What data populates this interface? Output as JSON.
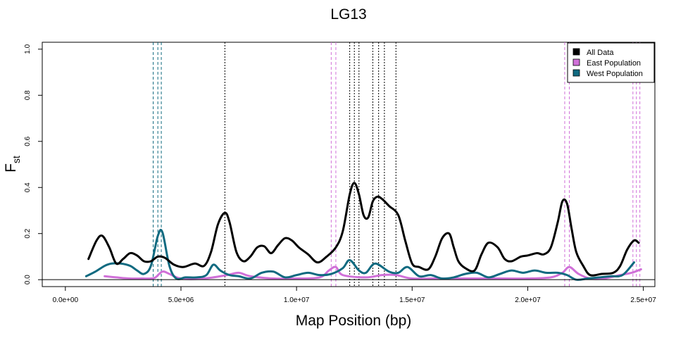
{
  "chart_data": {
    "type": "line",
    "title": "LG13",
    "xlabel": "Map Position (bp)",
    "ylabel_main": "F",
    "ylabel_sub": "st",
    "xlim": [
      -1000000,
      25500000
    ],
    "ylim": [
      -0.03,
      1.03
    ],
    "x_ticks": [
      0,
      5000000,
      10000000,
      15000000,
      20000000,
      25000000
    ],
    "x_tick_labels": [
      "0.0e+00",
      "5.0e+06",
      "1.0e+07",
      "1.5e+07",
      "2.0e+07",
      "2.5e+07"
    ],
    "y_ticks": [
      0,
      0.2,
      0.4,
      0.6,
      0.8,
      1.0
    ],
    "y_tick_labels": [
      "0.0",
      "0.2",
      "0.4",
      "0.6",
      "0.8",
      "1.0"
    ],
    "zero_line": 0,
    "legend_position": "top-right",
    "series": [
      {
        "name": "All Data",
        "color": "#000000",
        "x": [
          1000000,
          1350000,
          1600000,
          1900000,
          2200000,
          2500000,
          2800000,
          3100000,
          3400000,
          3700000,
          4000000,
          4300000,
          4700000,
          5100000,
          5600000,
          6000000,
          6300000,
          6600000,
          6900000,
          7100000,
          7400000,
          7700000,
          8000000,
          8300000,
          8600000,
          8900000,
          9200000,
          9500000,
          9800000,
          10100000,
          10500000,
          10900000,
          11300000,
          11700000,
          12000000,
          12300000,
          12500000,
          12700000,
          12900000,
          13100000,
          13300000,
          13500000,
          13700000,
          14000000,
          14400000,
          14700000,
          15000000,
          15300000,
          15700000,
          16000000,
          16300000,
          16600000,
          16800000,
          17000000,
          17300000,
          17700000,
          18000000,
          18300000,
          18700000,
          19000000,
          19300000,
          19700000,
          20000000,
          20400000,
          20700000,
          21000000,
          21300000,
          21500000,
          21700000,
          21900000,
          22100000,
          22400000,
          22700000,
          23200000,
          23700000,
          24000000,
          24300000,
          24600000,
          24800000
        ],
        "values": [
          0.09,
          0.17,
          0.19,
          0.14,
          0.07,
          0.09,
          0.115,
          0.105,
          0.08,
          0.08,
          0.1,
          0.095,
          0.065,
          0.055,
          0.07,
          0.06,
          0.12,
          0.24,
          0.29,
          0.25,
          0.12,
          0.08,
          0.1,
          0.14,
          0.145,
          0.115,
          0.15,
          0.18,
          0.17,
          0.14,
          0.11,
          0.075,
          0.1,
          0.14,
          0.21,
          0.37,
          0.42,
          0.37,
          0.28,
          0.27,
          0.34,
          0.36,
          0.35,
          0.32,
          0.28,
          0.17,
          0.07,
          0.055,
          0.045,
          0.1,
          0.18,
          0.2,
          0.14,
          0.08,
          0.05,
          0.04,
          0.11,
          0.16,
          0.14,
          0.09,
          0.08,
          0.1,
          0.105,
          0.115,
          0.11,
          0.14,
          0.25,
          0.34,
          0.33,
          0.22,
          0.12,
          0.06,
          0.02,
          0.025,
          0.03,
          0.06,
          0.13,
          0.17,
          0.16
        ]
      },
      {
        "name": "East Population",
        "color": "#d070d8",
        "x": [
          1700000,
          2200000,
          2800000,
          3300000,
          3700000,
          3900000,
          4200000,
          4500000,
          5000000,
          6000000,
          7000000,
          7500000,
          8000000,
          9000000,
          10000000,
          11000000,
          11400000,
          11700000,
          12000000,
          13000000,
          13700000,
          14300000,
          15000000,
          16000000,
          17000000,
          18000000,
          19000000,
          20000000,
          21000000,
          21500000,
          21800000,
          22200000,
          22700000,
          23300000,
          24000000,
          24500000,
          24900000
        ],
        "values": [
          0.015,
          0.01,
          0.005,
          0.005,
          0.005,
          0.01,
          0.035,
          0.025,
          0.005,
          0.005,
          0.02,
          0.03,
          0.015,
          0.005,
          0.005,
          0.01,
          0.04,
          0.055,
          0.02,
          0.01,
          0.02,
          0.02,
          0.005,
          0.005,
          0.005,
          0.005,
          0.005,
          0.005,
          0.01,
          0.03,
          0.055,
          0.025,
          0.005,
          0.005,
          0.02,
          0.03,
          0.045
        ]
      },
      {
        "name": "West Population",
        "color": "#106a80",
        "x": [
          900000,
          1300000,
          1700000,
          2000000,
          2400000,
          2800000,
          3100000,
          3400000,
          3700000,
          4000000,
          4200000,
          4500000,
          4800000,
          5200000,
          5700000,
          6100000,
          6400000,
          6700000,
          7100000,
          7500000,
          8000000,
          8500000,
          9000000,
          9500000,
          10000000,
          10500000,
          11000000,
          11500000,
          12000000,
          12300000,
          12700000,
          13000000,
          13400000,
          14000000,
          14400000,
          14800000,
          15300000,
          15800000,
          16300000,
          16800000,
          17300000,
          17800000,
          18300000,
          18800000,
          19300000,
          19800000,
          20300000,
          20800000,
          21300000,
          21700000,
          22100000,
          22600000,
          23100000,
          23600000,
          24100000,
          24600000
        ],
        "values": [
          0.015,
          0.035,
          0.06,
          0.07,
          0.07,
          0.06,
          0.04,
          0.025,
          0.06,
          0.19,
          0.205,
          0.06,
          0.005,
          0.01,
          0.01,
          0.02,
          0.065,
          0.04,
          0.02,
          0.015,
          0.005,
          0.03,
          0.035,
          0.01,
          0.02,
          0.03,
          0.02,
          0.025,
          0.05,
          0.085,
          0.04,
          0.03,
          0.07,
          0.035,
          0.03,
          0.055,
          0.015,
          0.02,
          0.005,
          0.01,
          0.025,
          0.03,
          0.01,
          0.025,
          0.04,
          0.03,
          0.04,
          0.03,
          0.03,
          0.02,
          0.0,
          0.005,
          0.01,
          0.015,
          0.02,
          0.075
        ]
      }
    ],
    "vlines": [
      {
        "x": 3800000,
        "color": "#106a80",
        "style": "dashed"
      },
      {
        "x": 4000000,
        "color": "#106a80",
        "style": "dashed"
      },
      {
        "x": 4150000,
        "color": "#106a80",
        "style": "dashed"
      },
      {
        "x": 6900000,
        "color": "#000000",
        "style": "dotted"
      },
      {
        "x": 11500000,
        "color": "#d070d8",
        "style": "dashed"
      },
      {
        "x": 11700000,
        "color": "#d070d8",
        "style": "dashed"
      },
      {
        "x": 12300000,
        "color": "#000000",
        "style": "dotted"
      },
      {
        "x": 12500000,
        "color": "#000000",
        "style": "dotted"
      },
      {
        "x": 12700000,
        "color": "#000000",
        "style": "dotted"
      },
      {
        "x": 13300000,
        "color": "#000000",
        "style": "dotted"
      },
      {
        "x": 13550000,
        "color": "#000000",
        "style": "dotted"
      },
      {
        "x": 13800000,
        "color": "#000000",
        "style": "dotted"
      },
      {
        "x": 14300000,
        "color": "#000000",
        "style": "dotted"
      },
      {
        "x": 21600000,
        "color": "#d070d8",
        "style": "dashed"
      },
      {
        "x": 21800000,
        "color": "#d070d8",
        "style": "dashed"
      },
      {
        "x": 24550000,
        "color": "#d070d8",
        "style": "dashed"
      },
      {
        "x": 24700000,
        "color": "#d070d8",
        "style": "dashed"
      },
      {
        "x": 24850000,
        "color": "#d070d8",
        "style": "dashed"
      }
    ]
  }
}
